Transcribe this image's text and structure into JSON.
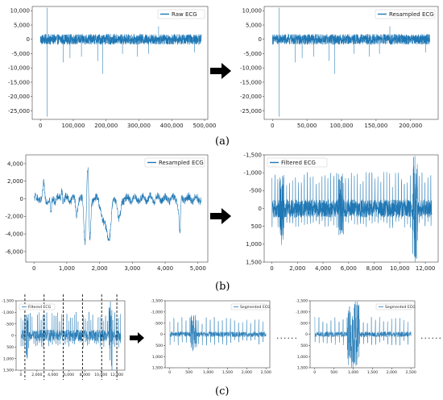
{
  "captions": {
    "a": "(a)",
    "b": "(b)",
    "c": "(c)"
  },
  "ellipsis": "......",
  "colors": {
    "series": "#1f77b4",
    "axis": "#333333",
    "arrow": "#000000"
  },
  "chart_data": [
    {
      "id": "a-left",
      "type": "line",
      "legend": "Raw ECG",
      "legend_position": "top-right",
      "xlim": [
        -25000,
        510000
      ],
      "ylim": [
        -28000,
        11500
      ],
      "xticks": [
        0,
        100000,
        200000,
        300000,
        400000,
        500000
      ],
      "xticklabels": [
        "0",
        "100,000",
        "200,000",
        "300,000",
        "400,000",
        "500,000"
      ],
      "yticks": [
        10000,
        5000,
        0,
        -5000,
        -10000,
        -15000,
        -20000,
        -25000
      ],
      "yticklabels": [
        "10,000",
        "5,000",
        "0",
        "-5,000",
        "-10,000",
        "-15,000",
        "-20,000",
        "-25,000"
      ],
      "y_inverted": false,
      "signal": {
        "x_start": 0,
        "x_end": 490000,
        "band": 1800,
        "spikes": [
          [
            20000,
            -27000
          ],
          [
            20500,
            11000
          ],
          [
            70000,
            -8000
          ],
          [
            90000,
            -6500
          ],
          [
            125000,
            -6000
          ],
          [
            175000,
            -7500
          ],
          [
            190000,
            -12000
          ],
          [
            250000,
            -5000
          ],
          [
            295000,
            -6000
          ],
          [
            330000,
            -5000
          ],
          [
            360000,
            4500
          ],
          [
            470000,
            -4500
          ]
        ]
      }
    },
    {
      "id": "a-right",
      "type": "line",
      "legend": "Resampled ECG",
      "legend_position": "top-right",
      "xlim": [
        -12000,
        240000
      ],
      "ylim": [
        -28000,
        11500
      ],
      "xticks": [
        0,
        50000,
        100000,
        150000,
        200000
      ],
      "xticklabels": [
        "0",
        "50,000",
        "100,000",
        "150,000",
        "200,000"
      ],
      "yticks": [
        10000,
        5000,
        0,
        -5000,
        -10000,
        -15000,
        -20000,
        -25000
      ],
      "yticklabels": [
        "10,000",
        "5,000",
        "0",
        "-5,000",
        "-10,000",
        "-15,000",
        "-20,000",
        "-25,000"
      ],
      "y_inverted": false,
      "signal": {
        "x_start": 0,
        "x_end": 228000,
        "band": 1800,
        "spikes": [
          [
            9500,
            -27000
          ],
          [
            9700,
            11000
          ],
          [
            33000,
            -8000
          ],
          [
            43000,
            -6500
          ],
          [
            60000,
            -6000
          ],
          [
            82000,
            -7500
          ],
          [
            90000,
            -12000
          ],
          [
            118000,
            -5000
          ],
          [
            140000,
            -6000
          ],
          [
            155000,
            -5000
          ],
          [
            170000,
            4500
          ],
          [
            222000,
            -4500
          ]
        ]
      }
    },
    {
      "id": "b-left",
      "type": "line",
      "legend": "Resampled ECG",
      "legend_position": "top-right",
      "xlim": [
        -250,
        5300
      ],
      "ylim": [
        -7200,
        5000
      ],
      "xticks": [
        0,
        1000,
        2000,
        3000,
        4000,
        5000
      ],
      "xticklabels": [
        "0",
        "1,000",
        "2,000",
        "3,000",
        "4,000",
        "5,000"
      ],
      "yticks": [
        4000,
        2000,
        0,
        -2000,
        -4000,
        -6000
      ],
      "yticklabels": [
        "4,000",
        "2,000",
        "0",
        "-2,000",
        "-4,000",
        "-6,000"
      ],
      "y_inverted": false,
      "waveform": {
        "n": 5100,
        "features": [
          [
            1650,
            4500,
            60
          ],
          [
            1700,
            -6800,
            40
          ],
          [
            1560,
            -5000,
            50
          ],
          [
            2150,
            -3000,
            120
          ],
          [
            2300,
            -3700,
            80
          ],
          [
            2600,
            -2500,
            60
          ],
          [
            4450,
            -4200,
            25
          ],
          [
            4400,
            -1400,
            30
          ],
          [
            300,
            1600,
            30
          ],
          [
            520,
            -2000,
            25
          ],
          [
            850,
            1200,
            20
          ],
          [
            1300,
            -1800,
            40
          ]
        ]
      }
    },
    {
      "id": "b-right",
      "type": "line",
      "legend": "Filtered ECG",
      "legend_position": "top-left",
      "xlim": [
        -600,
        13000
      ],
      "ylim": [
        -1500,
        1500
      ],
      "xticks": [
        0,
        2000,
        4000,
        6000,
        8000,
        10000,
        12000
      ],
      "xticklabels": [
        "0",
        "2,000",
        "4,000",
        "6,000",
        "8,000",
        "10,000",
        "12,000"
      ],
      "yticks": [
        -1500,
        -1000,
        -500,
        0,
        500,
        1000,
        1500
      ],
      "yticklabels": [
        "-1,500",
        "-1,000",
        "-500",
        "0",
        "500",
        "1,000",
        "1,500"
      ],
      "y_inverted": true,
      "signal": {
        "x_start": 0,
        "x_end": 12500,
        "band": 250,
        "beat_spacing": 230,
        "beat_up": -850,
        "beat_down": 500,
        "bursts": [
          [
            11000,
            11400,
            -1500,
            1500
          ],
          [
            600,
            900,
            -1000,
            1100
          ],
          [
            5200,
            5600,
            -1000,
            800
          ]
        ]
      }
    },
    {
      "id": "c-left",
      "type": "line",
      "legend": "Filtered ECG",
      "legend_position": "top-left",
      "xlim": [
        -600,
        13000
      ],
      "ylim": [
        -1500,
        1500
      ],
      "xticks": [
        0,
        2000,
        4000,
        6000,
        8000,
        10000,
        12000
      ],
      "xticklabels": [
        "0",
        "2,000",
        "4,000",
        "6,000",
        "8,000",
        "10,000",
        "12,000"
      ],
      "yticks": [
        -1500,
        -1000,
        -500,
        0,
        500,
        1000,
        1500
      ],
      "yticklabels": [
        "-1,500",
        "-1,000",
        "-500",
        "0",
        "500",
        "1,000",
        "1,500"
      ],
      "y_inverted": true,
      "segment_lines_x": [
        500,
        2900,
        5300,
        7700,
        10100,
        12000
      ],
      "signal": {
        "x_start": 0,
        "x_end": 12500,
        "band": 250,
        "beat_spacing": 230,
        "beat_up": -850,
        "beat_down": 500,
        "bursts": [
          [
            11000,
            11400,
            -1500,
            1500
          ],
          [
            600,
            900,
            -1000,
            1100
          ]
        ]
      }
    },
    {
      "id": "c-mid",
      "type": "line",
      "legend": "Segmented ECG",
      "legend_position": "top-right",
      "xlim": [
        -120,
        2600
      ],
      "ylim": [
        -1500,
        1500
      ],
      "xticks": [
        0,
        500,
        1000,
        1500,
        2000,
        2500
      ],
      "xticklabels": [
        "0",
        "500",
        "1,000",
        "1,500",
        "2,000",
        "2,500"
      ],
      "yticks": [
        -1500,
        -1000,
        -500,
        0,
        500,
        1000,
        1500
      ],
      "yticklabels": [
        "-1,500",
        "-1,000",
        "-500",
        "0",
        "500",
        "1,000",
        "1,500"
      ],
      "y_inverted": true,
      "signal": {
        "x_start": 0,
        "x_end": 2500,
        "band": 120,
        "beat_spacing": 105,
        "beat_up": -650,
        "beat_down": 450,
        "bursts": [
          [
            550,
            700,
            -900,
            900
          ]
        ]
      }
    },
    {
      "id": "c-right",
      "type": "line",
      "legend": "Segmented ECG",
      "legend_position": "top-right",
      "xlim": [
        -120,
        2600
      ],
      "ylim": [
        -1500,
        1500
      ],
      "xticks": [
        0,
        500,
        1000,
        1500,
        2000,
        2500
      ],
      "xticklabels": [
        "0",
        "500",
        "1,000",
        "1,500",
        "2,000",
        "2,500"
      ],
      "yticks": [
        -1500,
        -1000,
        -500,
        0,
        500,
        1000,
        1500
      ],
      "yticklabels": [
        "-1,500",
        "-1,000",
        "-500",
        "0",
        "500",
        "1,000",
        "1,500"
      ],
      "y_inverted": true,
      "signal": {
        "x_start": 0,
        "x_end": 2500,
        "band": 120,
        "beat_spacing": 105,
        "beat_up": -650,
        "beat_down": 450,
        "bursts": [
          [
            850,
            1150,
            -1500,
            1500
          ]
        ]
      }
    }
  ]
}
